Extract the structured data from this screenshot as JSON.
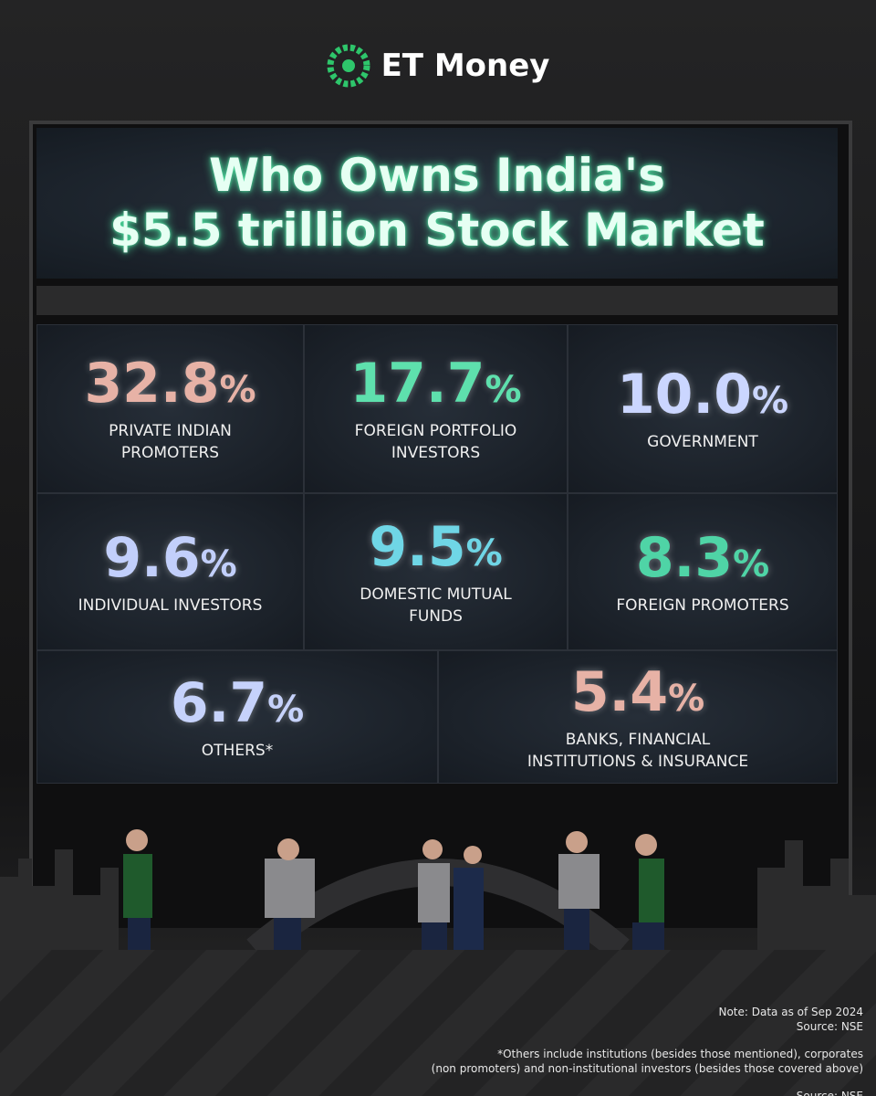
{
  "brand": "ET Money",
  "title": [
    "Who Owns India's",
    "$5.5 trillion Stock Market"
  ],
  "tiles": [
    {
      "value": "32.8",
      "unit": "%",
      "label": [
        "PRIVATE INDIAN",
        "PROMOTERS"
      ],
      "color": "#e7b2a6"
    },
    {
      "value": "17.7",
      "unit": "%",
      "label": [
        "FOREIGN PORTFOLIO",
        "INVESTORS"
      ],
      "color": "#5ee0ad"
    },
    {
      "value": "10.0",
      "unit": "%",
      "label": [
        "GOVERNMENT"
      ],
      "color": "#cbd6ff"
    },
    {
      "value": "9.6",
      "unit": "%",
      "label": [
        "INDIVIDUAL INVESTORS"
      ],
      "color": "#c2cffb"
    },
    {
      "value": "9.5",
      "unit": "%",
      "label": [
        "DOMESTIC MUTUAL",
        "FUNDS"
      ],
      "color": "#6fd6e6"
    },
    {
      "value": "8.3",
      "unit": "%",
      "label": [
        "FOREIGN PROMOTERS"
      ],
      "color": "#4fd4a6"
    },
    {
      "value": "6.7",
      "unit": "%",
      "label": [
        "OTHERS*"
      ],
      "color": "#c6d2fb"
    },
    {
      "value": "5.4",
      "unit": "%",
      "label": [
        "BANKS, FINANCIAL",
        "INSTITUTIONS & INSURANCE"
      ],
      "color": "#e7b2a6"
    }
  ],
  "notes": [
    "Note: Data as of Sep 2024",
    "Source: NSE"
  ],
  "footnote": [
    "*Others include institutions (besides those mentioned), corporates",
    "(non promoters) and non-institutional investors (besides those covered above)"
  ],
  "source_bottom": "Source: NSE"
}
